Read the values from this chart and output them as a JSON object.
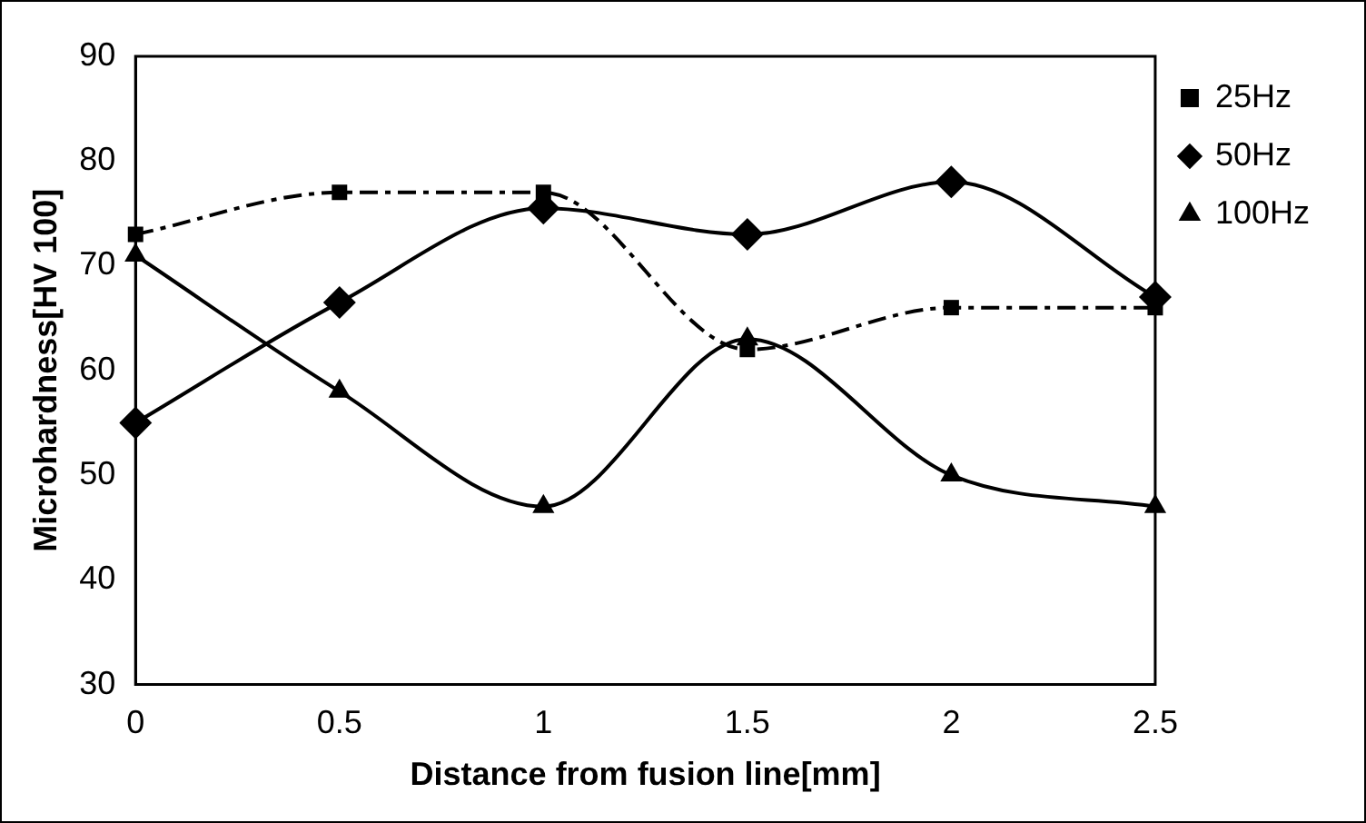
{
  "chart_data": {
    "type": "line",
    "xlabel": "Distance from fusion line[mm]",
    "ylabel": "Microhardness[HV 100]",
    "categories": [
      "0",
      "0.5",
      "1",
      "1.5",
      "2",
      "2.5"
    ],
    "series": [
      {
        "name": "25Hz",
        "color": "#000000",
        "marker": "square",
        "line_style": "dashed",
        "values": [
          73,
          77,
          77,
          62,
          66,
          66
        ]
      },
      {
        "name": "50Hz",
        "color": "#000000",
        "marker": "diamond",
        "line_style": "solid",
        "values": [
          55,
          66.5,
          75.5,
          73,
          78,
          67
        ]
      },
      {
        "name": "100Hz",
        "color": "#000000",
        "marker": "triangle",
        "line_style": "solid",
        "values": [
          71,
          58,
          47,
          63,
          50,
          47
        ]
      }
    ],
    "ylim": [
      30,
      90
    ],
    "yticks": [
      30,
      40,
      50,
      60,
      70,
      80,
      90
    ],
    "grid": false,
    "legend": "right"
  }
}
